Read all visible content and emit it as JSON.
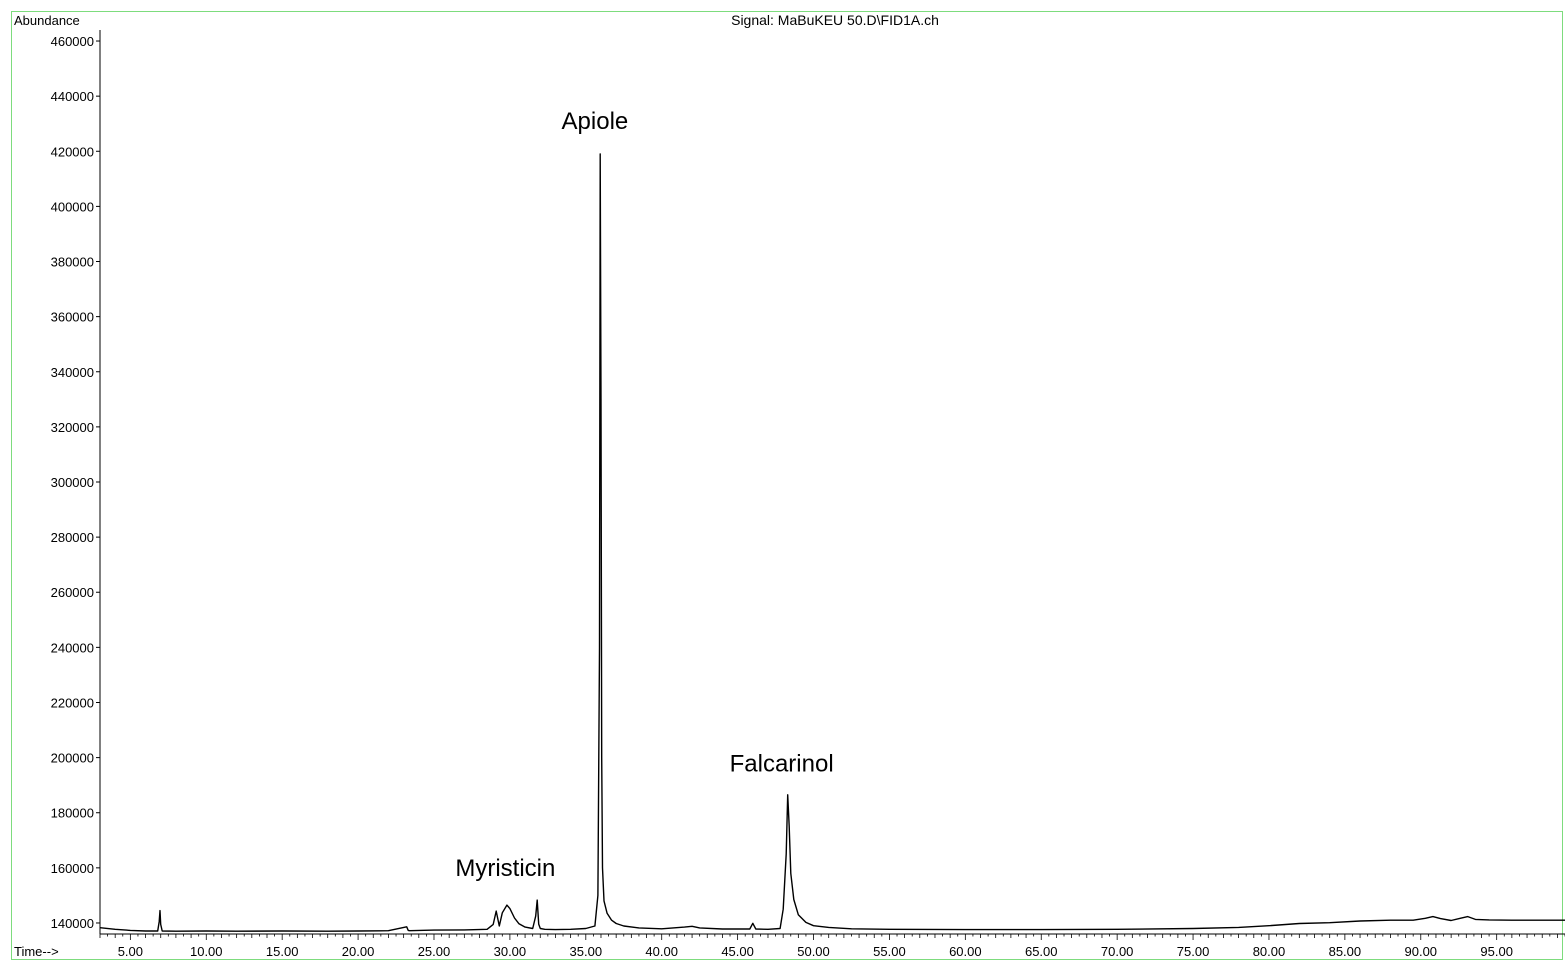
{
  "chart_data": {
    "type": "line",
    "title": "Signal: MaBuKEU 50.D\\FID1A.ch",
    "ylabel": "Abundance",
    "xlabel": "Time-->",
    "xlim": [
      3.0,
      99.5
    ],
    "ylim": [
      136000,
      464000
    ],
    "xticks": [
      5,
      10,
      15,
      20,
      25,
      30,
      35,
      40,
      45,
      50,
      55,
      60,
      65,
      70,
      75,
      80,
      85,
      90,
      95
    ],
    "xtick_labels": [
      "5.00",
      "10.00",
      "15.00",
      "20.00",
      "25.00",
      "30.00",
      "35.00",
      "40.00",
      "45.00",
      "50.00",
      "55.00",
      "60.00",
      "65.00",
      "70.00",
      "75.00",
      "80.00",
      "85.00",
      "90.00",
      "95.00"
    ],
    "yticks": [
      140000,
      160000,
      180000,
      200000,
      220000,
      240000,
      260000,
      280000,
      300000,
      320000,
      340000,
      360000,
      380000,
      400000,
      420000,
      440000,
      460000
    ],
    "ytick_labels": [
      "140000",
      "160000",
      "180000",
      "200000",
      "220000",
      "240000",
      "260000",
      "280000",
      "300000",
      "320000",
      "340000",
      "360000",
      "380000",
      "400000",
      "420000",
      "440000",
      "460000"
    ],
    "grid": false,
    "series": [
      {
        "x": [
          3.0,
          4.0,
          5.0,
          6.0,
          6.8,
          6.9,
          6.95,
          7.0,
          7.1,
          8.0,
          10.0,
          12.0,
          15.0,
          18.0,
          20.0,
          22.0,
          23.2,
          23.3,
          23.4,
          25.0,
          27.0,
          28.5,
          28.9,
          29.1,
          29.3,
          29.5,
          29.8,
          30.0,
          30.3,
          30.6,
          31.0,
          31.5,
          31.7,
          31.8,
          31.9,
          32.0,
          32.3,
          33.0,
          34.0,
          35.0,
          35.6,
          35.8,
          35.9,
          35.95,
          36.0,
          36.05,
          36.1,
          36.2,
          36.4,
          36.7,
          37.0,
          37.5,
          38.5,
          40.0,
          41.5,
          42.0,
          42.5,
          44.0,
          45.8,
          46.0,
          46.2,
          47.0,
          47.8,
          48.0,
          48.2,
          48.3,
          48.4,
          48.5,
          48.7,
          49.0,
          49.5,
          50.0,
          51.0,
          52.5,
          55.0,
          60.0,
          65.0,
          70.0,
          75.0,
          78.0,
          80.0,
          82.0,
          84.0,
          86.0,
          88.0,
          89.5,
          90.3,
          90.8,
          91.3,
          92.0,
          92.6,
          93.1,
          93.6,
          94.5,
          96.0,
          99.5
        ],
        "y": [
          138300,
          137700,
          137300,
          137100,
          137100,
          140500,
          144500,
          139500,
          137100,
          137000,
          137100,
          137000,
          137100,
          137000,
          137100,
          137200,
          138600,
          137300,
          137200,
          137400,
          137500,
          137700,
          139500,
          144300,
          138900,
          143700,
          146500,
          145200,
          141800,
          139700,
          138500,
          138000,
          142500,
          148300,
          139600,
          138000,
          137700,
          137600,
          137700,
          138000,
          138900,
          150000,
          240000,
          419000,
          330000,
          200000,
          160000,
          148000,
          143500,
          141000,
          139800,
          138900,
          138200,
          137900,
          138500,
          138800,
          138200,
          137800,
          137800,
          139900,
          137800,
          137700,
          138000,
          145000,
          165000,
          186500,
          175000,
          158000,
          148500,
          143000,
          140200,
          139000,
          138400,
          137900,
          137700,
          137600,
          137600,
          137700,
          138000,
          138400,
          139000,
          139800,
          140100,
          140700,
          141000,
          141000,
          141700,
          142300,
          141600,
          140900,
          141700,
          142300,
          141300,
          141100,
          141000,
          141000
        ]
      }
    ],
    "annotations": [
      {
        "text": "Apiole",
        "x": 35.6,
        "y": 428000
      },
      {
        "text": "Myristicin",
        "x": 29.7,
        "y": 157000
      },
      {
        "text": "Falcarinol",
        "x": 47.9,
        "y": 195000
      }
    ]
  }
}
